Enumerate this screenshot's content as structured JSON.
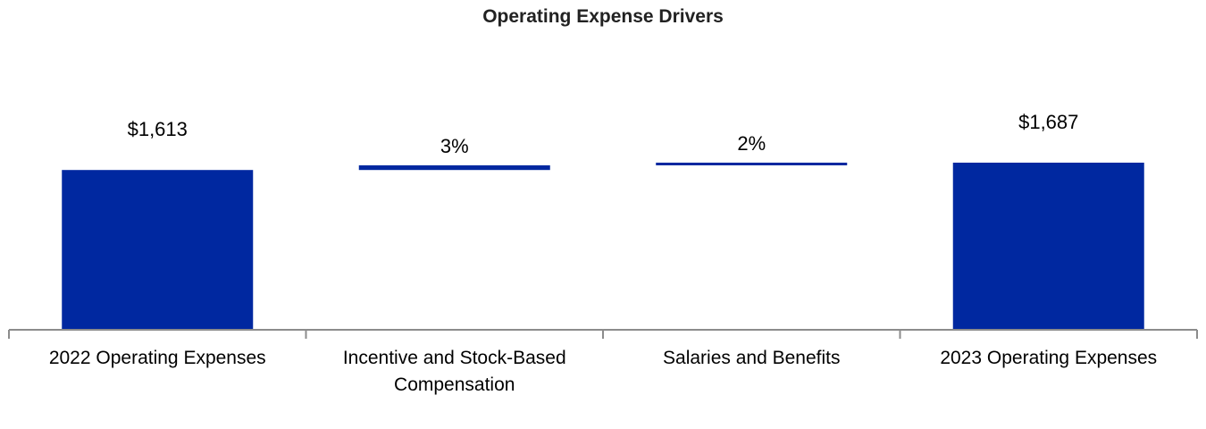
{
  "chart_data": {
    "type": "bar",
    "subtype": "waterfall",
    "title": "Operating Expense Drivers",
    "xlabel": "",
    "ylabel": "",
    "categories": [
      [
        "2022 Operating Expenses"
      ],
      [
        "Incentive and Stock-Based",
        "Compensation"
      ],
      [
        "Salaries and Benefits"
      ],
      [
        "2023 Operating Expenses"
      ]
    ],
    "bars": [
      {
        "kind": "total",
        "start": 0,
        "end": 1613,
        "label": "$1,613"
      },
      {
        "kind": "delta",
        "start": 1613,
        "end": 1660,
        "label": "3%"
      },
      {
        "kind": "delta",
        "start": 1660,
        "end": 1687,
        "label": "2%"
      },
      {
        "kind": "total",
        "start": 0,
        "end": 1687,
        "label": "$1,687"
      }
    ],
    "ylim": [
      0,
      1760
    ],
    "grid": false,
    "legend": "none",
    "colors": {
      "bar": "#0028A0",
      "axis": "#8C8C8C",
      "title": "#222222"
    }
  }
}
